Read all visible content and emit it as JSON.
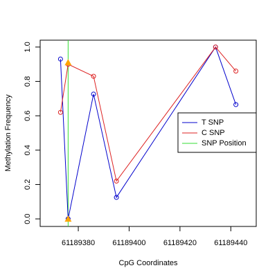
{
  "chart_data": {
    "type": "line",
    "xlabel": "CpG Coordinates",
    "ylabel": "Methylation Frequency",
    "x": [
      61189373,
      61189376,
      61189386,
      61189395,
      61189434,
      61189442
    ],
    "series": [
      {
        "name": "T SNP",
        "color": "#0000cc",
        "values": [
          0.93,
          0.0,
          0.726,
          0.125,
          1.0,
          0.665
        ]
      },
      {
        "name": "C SNP",
        "color": "#dd2222",
        "values": [
          0.62,
          0.9,
          0.83,
          0.22,
          1.0,
          0.86
        ]
      }
    ],
    "snp_line": {
      "name": "SNP Position",
      "color": "#33dd33",
      "x": 61189376
    },
    "snp_points": {
      "color": "#ffa500",
      "values": [
        0.91,
        0.0
      ]
    },
    "xlim": [
      61189365,
      61189450
    ],
    "ylim": [
      -0.044,
      1.04
    ],
    "xticks": [
      61189380,
      61189400,
      61189420,
      61189440
    ],
    "yticks": [
      {
        "value": 0,
        "label": "0.0"
      },
      {
        "value": 0.2,
        "label": "0.2"
      },
      {
        "value": 0.4,
        "label": "0.4"
      },
      {
        "value": 0.6,
        "label": "0.6"
      },
      {
        "value": 0.8,
        "label": "0.8"
      },
      {
        "value": 1,
        "label": "1.0"
      }
    ],
    "legend": "right"
  }
}
